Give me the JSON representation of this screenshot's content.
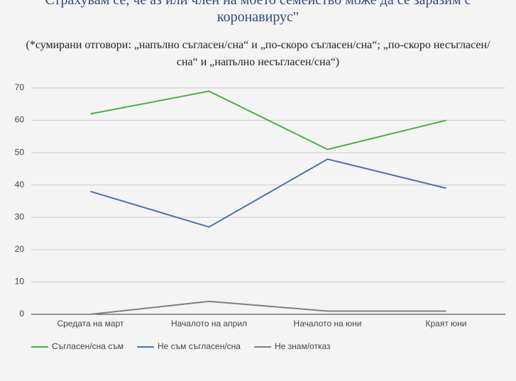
{
  "chart_data": {
    "type": "line",
    "title": "Страхувам се, че аз или член на моето семейство може да се заразим с коронавирус\"",
    "subtitle": "(*сумирани отговори: „напълно съгласен/сна“ и „по-скоро съгласен/сна“; „по-скоро несъгласен/сна“ и „напълно несъгласен/сна“)",
    "categories": [
      "Средата на март",
      "Началото на април",
      "Началото на юни",
      "Краят юни"
    ],
    "series": [
      {
        "name": "Съгласен/сна съм",
        "color": "#4caf43",
        "values": [
          62,
          69,
          51,
          60
        ]
      },
      {
        "name": "Не съм съгласен/сна",
        "color": "#4a72b0",
        "values": [
          38,
          27,
          48,
          39
        ]
      },
      {
        "name": "Не знам/отказ",
        "color": "#808080",
        "values": [
          0,
          4,
          1,
          1
        ]
      }
    ],
    "ylim": [
      0,
      70
    ],
    "yticks": [
      0,
      10,
      20,
      30,
      40,
      50,
      60,
      70
    ],
    "grid": true,
    "legend": "bottom"
  }
}
